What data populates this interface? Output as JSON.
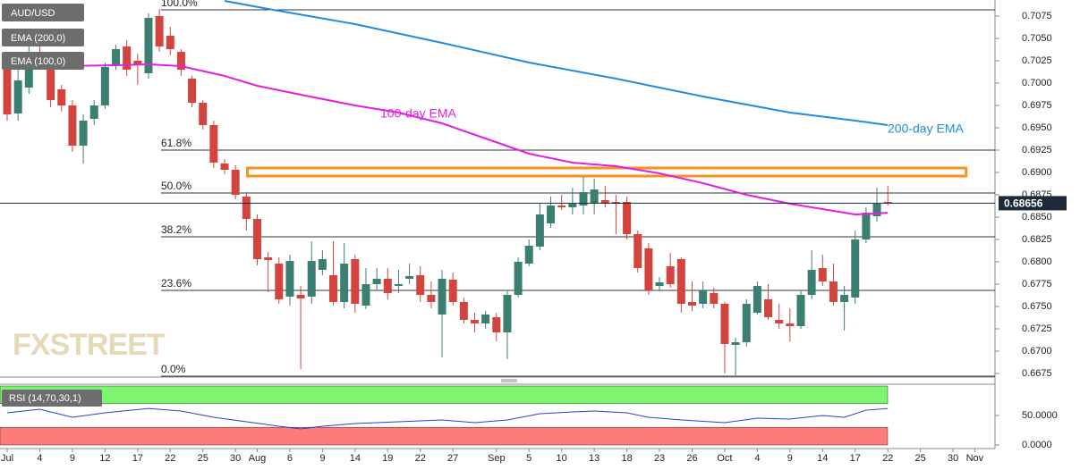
{
  "chart_data": [
    {
      "type": "candlestick",
      "name": "AUD/USD",
      "up_color": "#3b7f70",
      "down_color": "#d4443f",
      "xlim": [
        -0.66,
        90.86
      ],
      "xticks": [
        {
          "value": 0,
          "label": "Jul"
        },
        {
          "value": 3,
          "label": "4"
        },
        {
          "value": 6,
          "label": "9"
        },
        {
          "value": 9,
          "label": "12"
        },
        {
          "value": 12,
          "label": "17"
        },
        {
          "value": 15,
          "label": "22"
        },
        {
          "value": 18,
          "label": "25"
        },
        {
          "value": 21,
          "label": "30"
        },
        {
          "value": 23,
          "label": "Aug"
        },
        {
          "value": 26,
          "label": "6"
        },
        {
          "value": 29,
          "label": "9"
        },
        {
          "value": 32,
          "label": "14"
        },
        {
          "value": 35,
          "label": "19"
        },
        {
          "value": 38,
          "label": "22"
        },
        {
          "value": 41,
          "label": "27"
        },
        {
          "value": 45,
          "label": "Sep"
        },
        {
          "value": 48,
          "label": "5"
        },
        {
          "value": 51,
          "label": "10"
        },
        {
          "value": 54,
          "label": "13"
        },
        {
          "value": 57,
          "label": "18"
        },
        {
          "value": 60,
          "label": "23"
        },
        {
          "value": 63,
          "label": "26"
        },
        {
          "value": 66,
          "label": "Oct"
        },
        {
          "value": 69,
          "label": "4"
        },
        {
          "value": 72,
          "label": "9"
        },
        {
          "value": 75,
          "label": "14"
        },
        {
          "value": 78,
          "label": "17"
        },
        {
          "value": 81,
          "label": "22"
        },
        {
          "value": 84,
          "label": "25"
        },
        {
          "value": 87,
          "label": "30"
        },
        {
          "value": 89,
          "label": "Nov"
        }
      ],
      "ylim": [
        0.6671,
        0.7093
      ],
      "yticks": [
        0.7075,
        {
          "value": 0.705,
          "label": "0.7050"
        },
        0.7025,
        {
          "value": 0.7,
          "label": "0.7000"
        },
        0.6975,
        {
          "value": 0.695,
          "label": "0.6950"
        },
        0.6925,
        {
          "value": 0.69,
          "label": "0.6900"
        },
        0.6875,
        {
          "value": 0.685,
          "label": "0.6850"
        },
        0.6825,
        {
          "value": 0.68,
          "label": "0.6800"
        },
        0.6775,
        {
          "value": 0.675,
          "label": "0.6750"
        },
        0.6725,
        {
          "value": 0.67,
          "label": "0.6700"
        },
        0.6675
      ],
      "open": [
        0.7018,
        0.6966,
        0.6995,
        0.7033,
        0.7021,
        0.6993,
        0.6975,
        0.693,
        0.696,
        0.6975,
        0.7021,
        0.7041,
        0.7025,
        0.7011,
        0.7075,
        0.7053,
        0.7035,
        0.7005,
        0.6978,
        0.6953,
        0.691,
        0.6903,
        0.6873,
        0.6848,
        0.6805,
        0.6798,
        0.6761,
        0.6763,
        0.6761,
        0.6791,
        0.6785,
        0.6755,
        0.6803,
        0.6751,
        0.6775,
        0.6781,
        0.6773,
        0.6781,
        0.6785,
        0.6763,
        0.6741,
        0.678,
        0.6755,
        0.6735,
        0.6731,
        0.6738,
        0.6721,
        0.6763,
        0.6798,
        0.6817,
        0.6843,
        0.6863,
        0.6861,
        0.6863,
        0.6865,
        0.6869,
        0.6867,
        0.6867,
        0.6831,
        0.6815,
        0.6773,
        0.6795,
        0.6803,
        0.6755,
        0.6753,
        0.6765,
        0.6753,
        0.6707,
        0.671,
        0.6743,
        0.6758,
        0.6735,
        0.6731,
        0.6728,
        0.6763,
        0.6793,
        0.6778,
        0.6755,
        0.676,
        0.6825,
        0.6851,
        0.6867
      ],
      "high": [
        0.7028,
        0.7018,
        0.7043,
        0.7048,
        0.7028,
        0.6998,
        0.6981,
        0.6965,
        0.6981,
        0.7023,
        0.7043,
        0.7048,
        0.7033,
        0.7078,
        0.7083,
        0.7063,
        0.7038,
        0.7008,
        0.6981,
        0.6958,
        0.6915,
        0.6908,
        0.6878,
        0.6853,
        0.6811,
        0.6805,
        0.6808,
        0.6773,
        0.6823,
        0.6813,
        0.6823,
        0.6821,
        0.6808,
        0.6793,
        0.6793,
        0.6793,
        0.6791,
        0.6798,
        0.6795,
        0.6778,
        0.6791,
        0.6788,
        0.676,
        0.6743,
        0.6745,
        0.6743,
        0.6768,
        0.6805,
        0.6825,
        0.6865,
        0.6873,
        0.6875,
        0.6883,
        0.6895,
        0.6893,
        0.6885,
        0.6875,
        0.6873,
        0.6835,
        0.6821,
        0.6783,
        0.681,
        0.6805,
        0.6778,
        0.6778,
        0.6771,
        0.6755,
        0.6715,
        0.6758,
        0.6778,
        0.6775,
        0.6753,
        0.6748,
        0.6768,
        0.6813,
        0.6808,
        0.6798,
        0.6773,
        0.6835,
        0.6861,
        0.6883,
        0.6885
      ],
      "low": [
        0.6958,
        0.6958,
        0.6988,
        0.7018,
        0.6973,
        0.6968,
        0.6923,
        0.691,
        0.6953,
        0.6971,
        0.7015,
        0.7008,
        0.6998,
        0.7005,
        0.7035,
        0.7031,
        0.7008,
        0.6973,
        0.6948,
        0.6905,
        0.6898,
        0.687,
        0.6835,
        0.6796,
        0.6766,
        0.6753,
        0.6751,
        0.668,
        0.6753,
        0.6785,
        0.6751,
        0.6748,
        0.6743,
        0.6747,
        0.6768,
        0.6758,
        0.6765,
        0.6775,
        0.6755,
        0.6748,
        0.6693,
        0.6751,
        0.6731,
        0.6721,
        0.6725,
        0.6711,
        0.6691,
        0.676,
        0.6795,
        0.6813,
        0.6838,
        0.6858,
        0.6853,
        0.6853,
        0.6853,
        0.6861,
        0.6831,
        0.6825,
        0.6788,
        0.6763,
        0.6768,
        0.6771,
        0.6743,
        0.6745,
        0.6748,
        0.6748,
        0.6675,
        0.6673,
        0.6705,
        0.6741,
        0.6735,
        0.6725,
        0.6711,
        0.6725,
        0.6758,
        0.6773,
        0.6751,
        0.6723,
        0.6753,
        0.6821,
        0.6845,
        0.6863
      ],
      "close": [
        0.6965,
        0.7003,
        0.7033,
        0.7023,
        0.6981,
        0.6975,
        0.693,
        0.6958,
        0.6975,
        0.7018,
        0.7038,
        0.7015,
        0.7021,
        0.7073,
        0.7041,
        0.7038,
        0.7015,
        0.6978,
        0.6953,
        0.6911,
        0.6903,
        0.6875,
        0.6848,
        0.6803,
        0.6802,
        0.6758,
        0.6801,
        0.6759,
        0.6801,
        0.6803,
        0.6755,
        0.6798,
        0.6753,
        0.6775,
        0.6781,
        0.6765,
        0.6775,
        0.6784,
        0.6763,
        0.6755,
        0.6781,
        0.6755,
        0.6735,
        0.6731,
        0.6741,
        0.6721,
        0.6763,
        0.68,
        0.6818,
        0.6853,
        0.6863,
        0.6861,
        0.6865,
        0.6878,
        0.6881,
        0.6865,
        0.6865,
        0.6831,
        0.6793,
        0.6768,
        0.6777,
        0.6775,
        0.6753,
        0.6751,
        0.6768,
        0.6753,
        0.6708,
        0.671,
        0.6753,
        0.6773,
        0.6738,
        0.6731,
        0.6728,
        0.6763,
        0.6791,
        0.6778,
        0.6755,
        0.6763,
        0.6825,
        0.6855,
        0.6865,
        0.68656
      ],
      "series": [
        {
          "name": "EMA (200,0)",
          "color": "#1f8be3",
          "annotation": "200-day EMA",
          "x": [
            20,
            24,
            32,
            40,
            48,
            56,
            64,
            72,
            78,
            81
          ],
          "values": [
            0.7092,
            0.7083,
            0.7066,
            0.7045,
            0.7023,
            0.7005,
            0.6985,
            0.6967,
            0.6958,
            0.6953
          ]
        },
        {
          "name": "EMA (100,0)",
          "color": "#e41fe4",
          "annotation": "100-day EMA",
          "x": [
            0,
            5,
            10,
            13,
            16,
            20,
            23,
            27,
            32,
            36,
            40,
            44,
            48,
            52,
            56,
            60,
            64,
            68,
            72,
            76,
            78,
            80,
            81
          ],
          "values": [
            0.7021,
            0.7019,
            0.702,
            0.7021,
            0.7019,
            0.7008,
            0.6997,
            0.6987,
            0.6975,
            0.6967,
            0.6955,
            0.6938,
            0.6921,
            0.6911,
            0.6907,
            0.6899,
            0.6888,
            0.6875,
            0.6865,
            0.6857,
            0.6853,
            0.6854,
            0.6855
          ]
        }
      ],
      "fibonacci": [
        {
          "label": "100.0%",
          "value": 0.7082
        },
        {
          "label": "61.8%",
          "value": 0.6925
        },
        {
          "label": "50.0%",
          "value": 0.6877
        },
        {
          "label": "38.2%",
          "value": 0.6828
        },
        {
          "label": "23.6%",
          "value": 0.6768
        },
        {
          "label": "0.0%",
          "value": 0.6672
        }
      ],
      "zone": {
        "color": "#f7931e",
        "range": [
          0.6896,
          0.6905
        ],
        "xlim": [
          22.1,
          88.2
        ]
      },
      "last_price": 0.68656,
      "watermark": "FXSTREET"
    },
    {
      "type": "line",
      "title": "RSI (14,70,30,1)",
      "ylim": [
        0,
        100
      ],
      "yticks": [
        {
          "value": 50,
          "label": "50.0000"
        },
        {
          "value": 0,
          "label": "0.0000"
        }
      ],
      "bands": [
        {
          "range": [
            70,
            100
          ],
          "color": "#7df56f"
        },
        {
          "range": [
            0,
            30
          ],
          "color": "#ff7b7b"
        }
      ],
      "series": [
        {
          "color": "#2b3fd0",
          "x": [
            0,
            3,
            6,
            9,
            13,
            16,
            19,
            22,
            25,
            27,
            29,
            32,
            36,
            40,
            43,
            46,
            49,
            52,
            54,
            57,
            59,
            62,
            66,
            69,
            72,
            75,
            77,
            79,
            81
          ],
          "values": [
            54.5,
            60.6,
            47,
            54.5,
            62,
            57.6,
            47,
            39.4,
            31.8,
            27.3,
            31.8,
            36.4,
            39.4,
            42.4,
            37.9,
            42.4,
            53,
            56,
            57.6,
            54.5,
            47,
            42.4,
            37.9,
            45.5,
            44,
            50,
            47,
            59,
            62
          ]
        }
      ]
    }
  ]
}
